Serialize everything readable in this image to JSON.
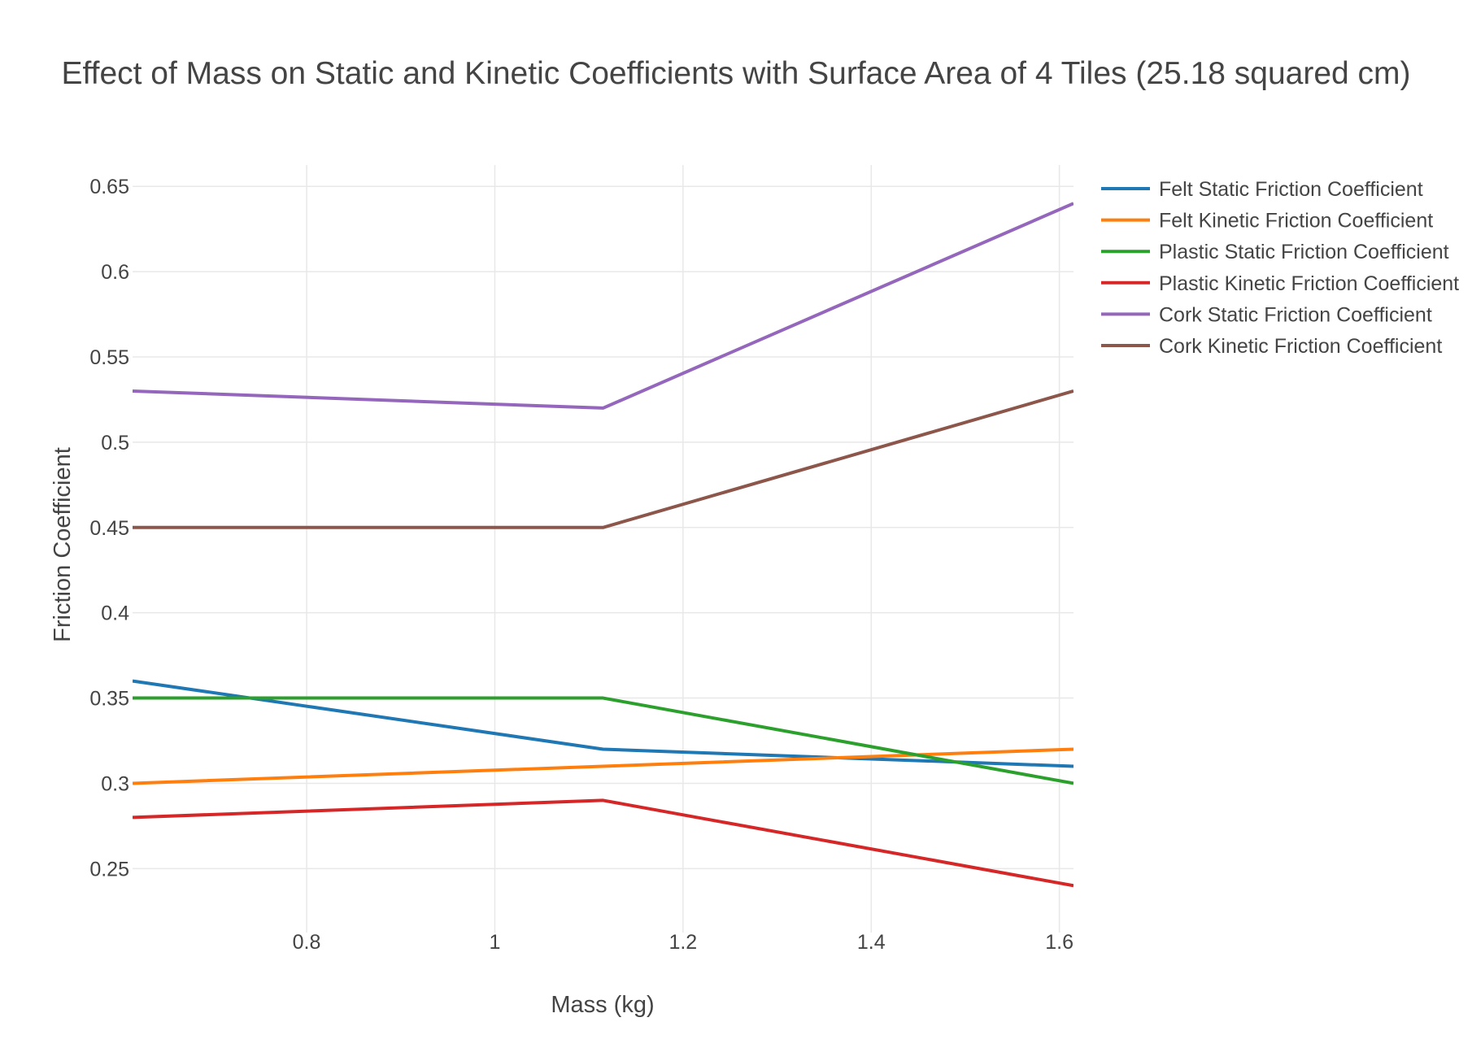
{
  "chart_data": {
    "type": "line",
    "title": "Effect of Mass on Static and Kinetic Coefficients with Surface Area of 4 Tiles (25.18 squared cm)",
    "xlabel": "Mass (kg)",
    "ylabel": "Friction Coefficient",
    "x": [
      0.615,
      1.115,
      1.615
    ],
    "xlim": [
      0.615,
      1.615
    ],
    "ylim": [
      0.2125,
      0.6625
    ],
    "xticks": [
      0.8,
      1.0,
      1.2,
      1.4,
      1.6
    ],
    "xtick_labels": [
      "0.8",
      "1",
      "1.2",
      "1.4",
      "1.6"
    ],
    "yticks": [
      0.25,
      0.3,
      0.35,
      0.4,
      0.45,
      0.5,
      0.55,
      0.6,
      0.65
    ],
    "ytick_labels": [
      "0.25",
      "0.3",
      "0.35",
      "0.4",
      "0.45",
      "0.5",
      "0.55",
      "0.6",
      "0.65"
    ],
    "grid": true,
    "legend_position": "top-right, outside plot",
    "series": [
      {
        "name": "Felt Static Friction Coefficient",
        "color": "#1f77b4",
        "values": [
          0.36,
          0.32,
          0.31
        ]
      },
      {
        "name": "Felt Kinetic Friction Coefficient",
        "color": "#ff7f0e",
        "values": [
          0.3,
          0.31,
          0.32
        ]
      },
      {
        "name": "Plastic Static Friction Coefficient",
        "color": "#2ca02c",
        "values": [
          0.35,
          0.35,
          0.3
        ]
      },
      {
        "name": "Plastic Kinetic Friction Coefficient",
        "color": "#d62728",
        "values": [
          0.28,
          0.29,
          0.24
        ]
      },
      {
        "name": "Cork Static Friction Coefficient",
        "color": "#9467bd",
        "values": [
          0.53,
          0.52,
          0.64
        ]
      },
      {
        "name": "Cork Kinetic Friction Coefficient",
        "color": "#8c564b",
        "values": [
          0.45,
          0.45,
          0.53
        ]
      }
    ]
  }
}
